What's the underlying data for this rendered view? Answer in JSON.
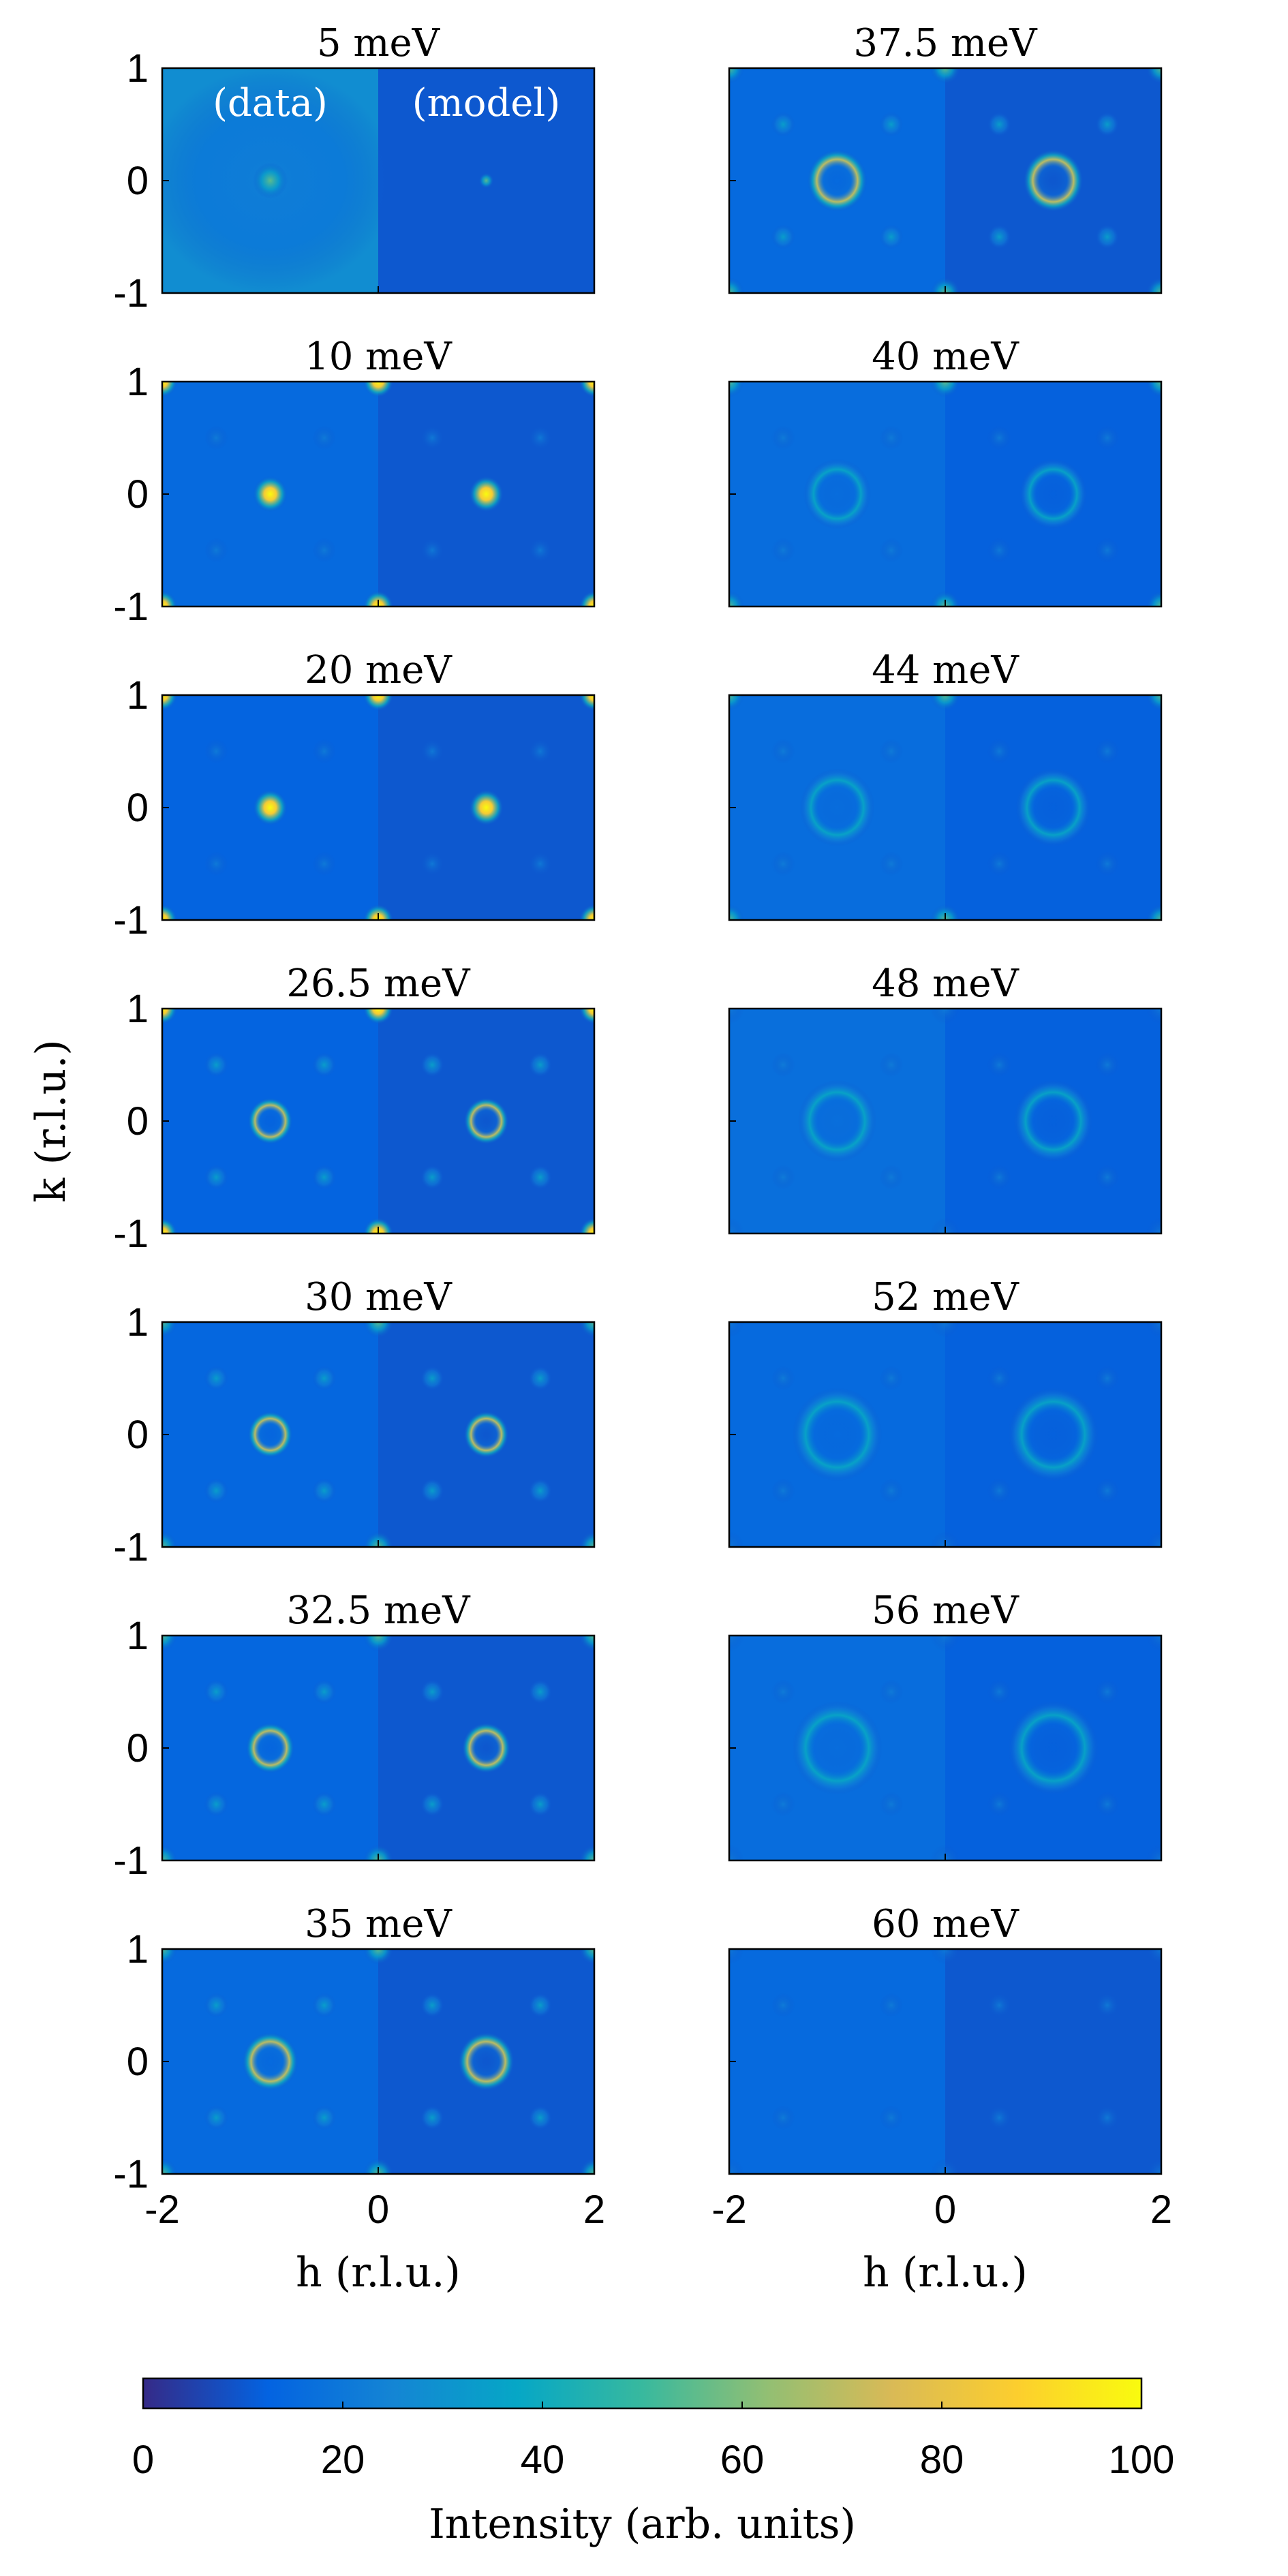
{
  "chart_data": {
    "type": "heatmap",
    "description_grid": "14 panels (7 rows x 2 columns) of constant-energy intensity maps; each panel left half = data, right half = model",
    "panels": [
      {
        "title": "5 meV",
        "features": {
          "center": 0.55,
          "corners": 0.0,
          "rings": 0.0,
          "satellites": 0.0,
          "data_bg": 0.18,
          "model_bg": 0.0
        }
      },
      {
        "title": "10 meV",
        "features": {
          "center": 1.0,
          "corners": 0.75,
          "rings": 0.0,
          "satellites": 0.25,
          "data_bg": 0.05,
          "model_bg": 0.0
        }
      },
      {
        "title": "20 meV",
        "features": {
          "center": 1.0,
          "corners": 0.95,
          "rings": 0.0,
          "satellites": 0.1,
          "data_bg": 0.03,
          "model_bg": 0.0
        }
      },
      {
        "title": "26.5 meV",
        "features": {
          "center": 0.0,
          "corners": 0.75,
          "rings": 0.75,
          "satellites": 0.4,
          "data_bg": 0.03,
          "model_bg": 0.0
        }
      },
      {
        "title": "30 meV",
        "features": {
          "center": 0.0,
          "corners": 0.6,
          "rings": 0.75,
          "satellites": 0.45,
          "data_bg": 0.04,
          "model_bg": 0.0
        }
      },
      {
        "title": "32.5 meV",
        "features": {
          "center": 0.0,
          "corners": 0.6,
          "rings": 0.7,
          "satellites": 0.45,
          "data_bg": 0.04,
          "model_bg": 0.0
        }
      },
      {
        "title": "35 meV",
        "features": {
          "center": 0.0,
          "corners": 0.55,
          "rings": 0.6,
          "satellites": 0.45,
          "data_bg": 0.05,
          "model_bg": 0.0
        }
      },
      {
        "title": "37.5 meV",
        "features": {
          "center": 0.0,
          "corners": 0.45,
          "rings": 0.55,
          "satellites": 0.45,
          "data_bg": 0.05,
          "model_bg": 0.0
        }
      },
      {
        "title": "40 meV",
        "features": {
          "center": 0.0,
          "corners": 0.35,
          "rings": 0.45,
          "satellites": 0.3,
          "data_bg": 0.06,
          "model_bg": 0.02
        }
      },
      {
        "title": "44 meV",
        "features": {
          "center": 0.0,
          "corners": 0.35,
          "rings": 0.35,
          "satellites": 0.35,
          "data_bg": 0.06,
          "model_bg": 0.02
        }
      },
      {
        "title": "48 meV",
        "features": {
          "center": 0.0,
          "corners": 0.3,
          "rings": 0.3,
          "satellites": 0.3,
          "data_bg": 0.07,
          "model_bg": 0.02
        }
      },
      {
        "title": "52 meV",
        "features": {
          "center": 0.0,
          "corners": 0.2,
          "rings": 0.15,
          "satellites": 0.2,
          "data_bg": 0.05,
          "model_bg": 0.02
        }
      },
      {
        "title": "56 meV",
        "features": {
          "center": 0.0,
          "corners": 0.2,
          "rings": 0.15,
          "satellites": 0.25,
          "data_bg": 0.06,
          "model_bg": 0.02
        }
      },
      {
        "title": "60 meV",
        "features": {
          "center": 0.0,
          "corners": 0.1,
          "rings": 0.0,
          "satellites": 0.15,
          "data_bg": 0.05,
          "model_bg": 0.0
        }
      }
    ],
    "inset_labels": {
      "data": "(data)",
      "model": "(model)"
    },
    "x_axis": {
      "label": "h (r.l.u.)",
      "range": [
        -2,
        2
      ],
      "ticks": [
        "-2",
        "0",
        "2"
      ]
    },
    "y_axis": {
      "label": "k (r.l.u.)",
      "range": [
        -1,
        1
      ],
      "ticks": [
        "1",
        "0",
        "-1"
      ]
    },
    "colorbar": {
      "label": "Intensity (arb. units)",
      "range": [
        0,
        100
      ],
      "ticks": [
        "0",
        "20",
        "40",
        "60",
        "80",
        "100"
      ],
      "colormap": "parula",
      "colors": [
        "#352a87",
        "#0363e1",
        "#1485d4",
        "#06a7c6",
        "#38b99e",
        "#92bf73",
        "#d9ba56",
        "#fcce2e",
        "#f9fb0e"
      ]
    }
  }
}
